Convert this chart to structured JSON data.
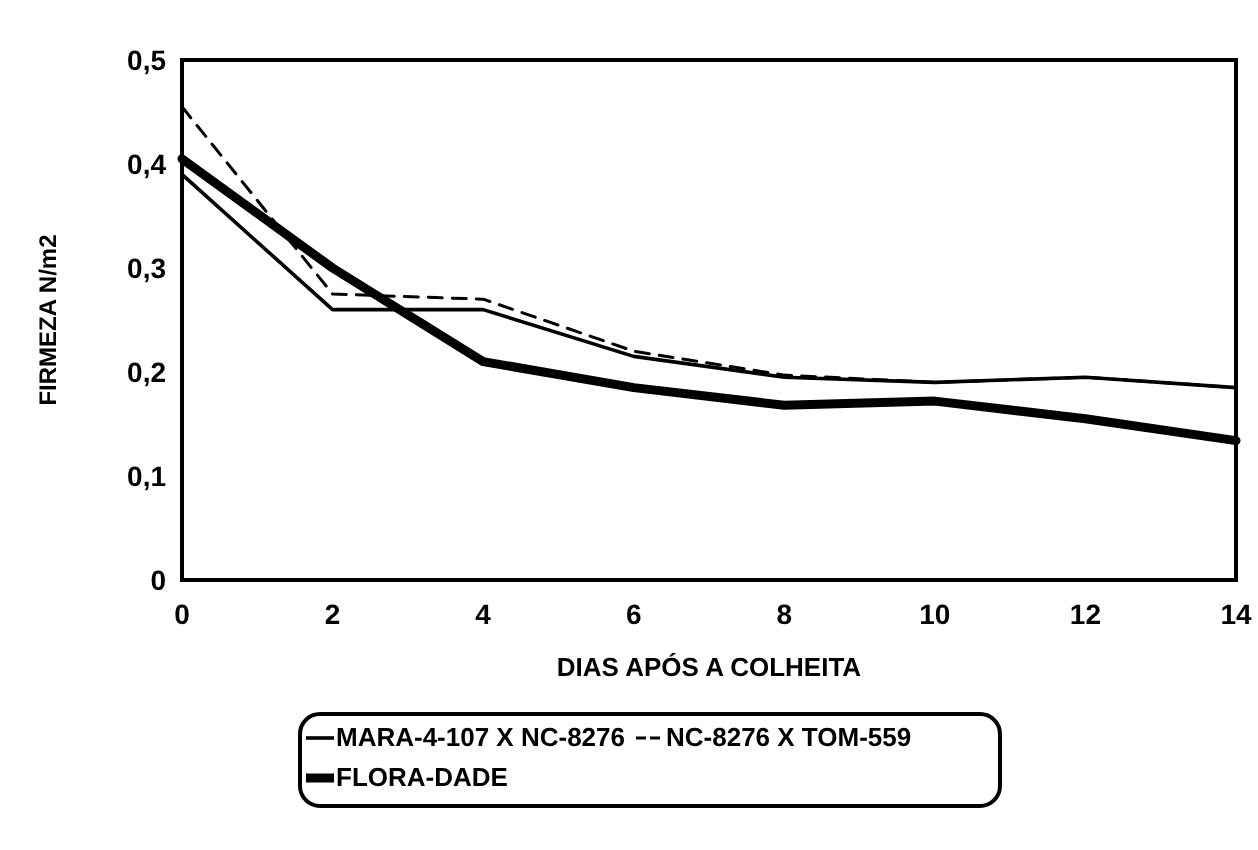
{
  "chart_data": {
    "type": "line",
    "xlabel": "DIAS APÓS A COLHEITA",
    "ylabel": "FIRMEZA N/m2",
    "x": [
      0,
      2,
      4,
      6,
      8,
      10,
      12,
      14
    ],
    "series": [
      {
        "name": "MARA-4-107 X NC-8276",
        "color": "#000000",
        "line_style": "solid",
        "values": [
          0.39,
          0.26,
          0.26,
          0.215,
          0.195,
          0.19,
          0.195,
          0.185
        ]
      },
      {
        "name": "NC-8276 X TOM-559",
        "color": "#000000",
        "line_style": "dashed",
        "values": [
          0.455,
          0.275,
          0.27,
          0.22,
          0.197,
          0.19,
          0.195,
          0.185
        ]
      },
      {
        "name": "FLORA-DADE",
        "color": "#000000",
        "line_style": "solid",
        "values": [
          0.405,
          0.3,
          0.21,
          0.185,
          0.168,
          0.172,
          0.155,
          0.134
        ]
      }
    ],
    "xlim": [
      0,
      14
    ],
    "xticks": [
      0,
      2,
      4,
      6,
      8,
      10,
      12,
      14
    ],
    "ylim": [
      0,
      0.5
    ],
    "yticks": [
      {
        "value": 0,
        "label": "0"
      },
      {
        "value": 0.1,
        "label": "0,1"
      },
      {
        "value": 0.2,
        "label": "0,2"
      },
      {
        "value": 0.3,
        "label": "0,3"
      },
      {
        "value": 0.4,
        "label": "0,4"
      },
      {
        "value": 0.5,
        "label": "0,5"
      }
    ],
    "grid": false,
    "legend": "bottom",
    "marker": "none"
  }
}
